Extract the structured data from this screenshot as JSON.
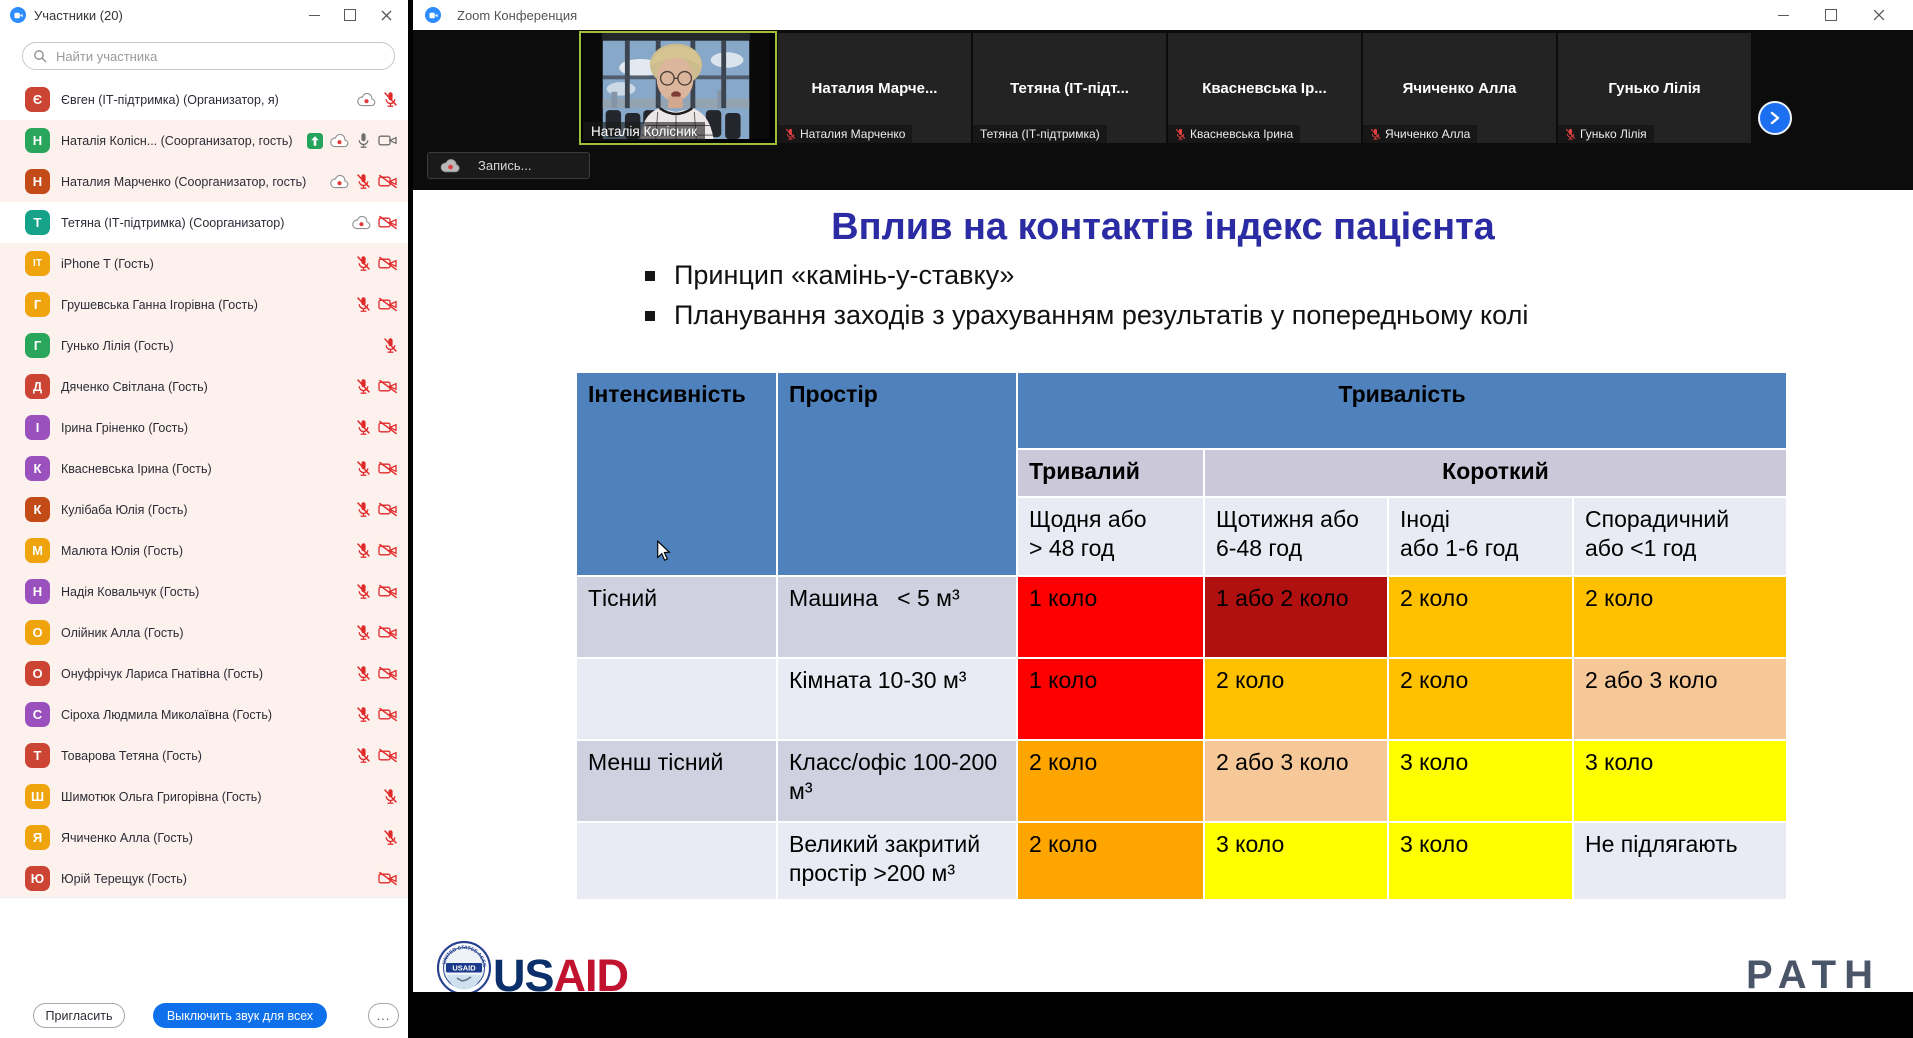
{
  "participants_panel": {
    "title": "Участники (20)",
    "search_placeholder": "Найти участника",
    "invite_label": "Пригласить",
    "mute_all_label": "Выключить звук для всех",
    "more_label": "...",
    "participants": [
      {
        "initial": "Є",
        "name": "Євген (ІТ-підтримка) (Организатор, я)",
        "color": "#cc4433",
        "highlight": false,
        "icons": [
          "cloud",
          "mic-muted"
        ]
      },
      {
        "initial": "Н",
        "name": "Наталія Колісн... (Соорганизатор, гость)",
        "color": "#2aa65c",
        "highlight": true,
        "icons": [
          "share",
          "cloud",
          "mic-on",
          "cam-on"
        ]
      },
      {
        "initial": "Н",
        "name": "Наталия Марченко (Соорганизатор, гость)",
        "color": "#c24b17",
        "highlight": true,
        "icons": [
          "cloud",
          "mic-muted",
          "cam-muted"
        ]
      },
      {
        "initial": "Т",
        "name": "Тетяна (ІТ-підтримка) (Соорганизатор)",
        "color": "#15a288",
        "highlight": false,
        "icons": [
          "cloud",
          "cam-muted"
        ]
      },
      {
        "initial": "IT",
        "name": "iPhone T (Гость)",
        "color": "#efa30d",
        "highlight": true,
        "icons": [
          "mic-muted",
          "cam-muted"
        ]
      },
      {
        "initial": "Г",
        "name": "Грушевська Ганна Ігорівна (Гость)",
        "color": "#efa30d",
        "highlight": true,
        "icons": [
          "mic-muted",
          "cam-muted"
        ]
      },
      {
        "initial": "Г",
        "name": "Гунько Лілія (Гость)",
        "color": "#2aa65c",
        "highlight": true,
        "icons": [
          "mic-muted"
        ]
      },
      {
        "initial": "Д",
        "name": "Дяченко Світлана (Гость)",
        "color": "#cc4433",
        "highlight": true,
        "icons": [
          "mic-muted",
          "cam-muted"
        ]
      },
      {
        "initial": "І",
        "name": "Ірина Гріненко (Гость)",
        "color": "#9b51bd",
        "highlight": true,
        "icons": [
          "mic-muted",
          "cam-muted"
        ]
      },
      {
        "initial": "К",
        "name": "Квасневська Ірина (Гость)",
        "color": "#9b51bd",
        "highlight": true,
        "icons": [
          "mic-muted",
          "cam-muted"
        ]
      },
      {
        "initial": "К",
        "name": "Кулібаба Юлія (Гость)",
        "color": "#c24b17",
        "highlight": true,
        "icons": [
          "mic-muted",
          "cam-muted"
        ]
      },
      {
        "initial": "М",
        "name": "Малюта Юлія (Гость)",
        "color": "#efa30d",
        "highlight": true,
        "icons": [
          "mic-muted",
          "cam-muted"
        ]
      },
      {
        "initial": "Н",
        "name": "Надія Ковальчук (Гость)",
        "color": "#9b51bd",
        "highlight": true,
        "icons": [
          "mic-muted",
          "cam-muted"
        ]
      },
      {
        "initial": "О",
        "name": "Олійник Алла (Гость)",
        "color": "#efa30d",
        "highlight": true,
        "icons": [
          "mic-muted",
          "cam-muted"
        ]
      },
      {
        "initial": "О",
        "name": "Онуфрічук Лариса Гнатівна (Гость)",
        "color": "#cc4433",
        "highlight": true,
        "icons": [
          "mic-muted",
          "cam-muted"
        ]
      },
      {
        "initial": "С",
        "name": "Сіроха Людмила Миколаївна (Гость)",
        "color": "#9b51bd",
        "highlight": true,
        "icons": [
          "mic-muted",
          "cam-muted"
        ]
      },
      {
        "initial": "Т",
        "name": "Товарова Тетяна (Гость)",
        "color": "#cc4433",
        "highlight": true,
        "icons": [
          "mic-muted",
          "cam-muted"
        ]
      },
      {
        "initial": "Ш",
        "name": "Шимотюк Ольга Григорівна (Гость)",
        "color": "#efa30d",
        "highlight": true,
        "icons": [
          "mic-muted"
        ]
      },
      {
        "initial": "Я",
        "name": "Ячиченко Алла (Гость)",
        "color": "#efa30d",
        "highlight": true,
        "icons": [
          "mic-muted"
        ]
      },
      {
        "initial": "Ю",
        "name": "Юрій Терещук (Гость)",
        "color": "#cc4433",
        "highlight": true,
        "icons": [
          "cam-muted"
        ]
      }
    ]
  },
  "main_window": {
    "title": "Zoom Конференция",
    "recording_label": "Запись...",
    "video_strip": {
      "active_name": "Наталія Колісник",
      "tiles": [
        {
          "display": "Наталия Марче...",
          "label": "Наталия Марченко",
          "muted": true
        },
        {
          "display": "Тетяна (ІТ-підт...",
          "label": "Тетяна (ІТ-підтримка)",
          "muted": false
        },
        {
          "display": "Квасневська Ір...",
          "label": "Квасневська Ірина",
          "muted": true
        },
        {
          "display": "Ячиченко Алла",
          "label": "Ячиченко Алла",
          "muted": true
        },
        {
          "display": "Гунько Лілія",
          "label": "Гунько Лілія",
          "muted": true
        }
      ]
    },
    "slide": {
      "title": "Вплив на контактів індекс пацієнта",
      "bullets": [
        "Принцип «камінь-у-ставку»",
        "Планування заходів з урахуванням результатів у попередньому колі"
      ],
      "table": {
        "col_intensity": "Інтенсивність",
        "col_space": "Простір",
        "col_duration": "Тривалість",
        "sub_long": "Тривалий",
        "sub_short": "Короткий",
        "periods": [
          "Щодня або\n> 48 год",
          "Щотижня або\n6-48 год",
          "Іноді\nабо 1-6 год",
          "Спорадичний\nабо <1 год"
        ],
        "rows": [
          {
            "intensity": "Тісний",
            "space": "Машина   < 5 м³",
            "cells": [
              {
                "text": "1 коло",
                "color": "red"
              },
              {
                "text": "1 або 2 коло",
                "color": "darkred"
              },
              {
                "text": "2 коло",
                "color": "amber"
              },
              {
                "text": "2 коло",
                "color": "amber"
              }
            ]
          },
          {
            "intensity": "",
            "space": "Кімната 10-30 м³",
            "cells": [
              {
                "text": "1 коло",
                "color": "red"
              },
              {
                "text": "2 коло",
                "color": "amber"
              },
              {
                "text": "2 коло",
                "color": "amber"
              },
              {
                "text": "2 або 3 коло",
                "color": "peach"
              }
            ]
          },
          {
            "intensity": "Менш тісний",
            "space": "Класс/офіс 100-200 м³",
            "cells": [
              {
                "text": "2 коло",
                "color": "orange"
              },
              {
                "text": "2 або 3 коло",
                "color": "peach"
              },
              {
                "text": "3 коло",
                "color": "yellow"
              },
              {
                "text": "3 коло",
                "color": "yellow"
              }
            ]
          },
          {
            "intensity": "",
            "space": "Великий закритий простір >200 м³",
            "cells": [
              {
                "text": "2 коло",
                "color": "orange"
              },
              {
                "text": "3 коло",
                "color": "yellow"
              },
              {
                "text": "3 коло",
                "color": "yellow"
              },
              {
                "text": "Не підлягають",
                "color": "plain"
              }
            ]
          }
        ],
        "colors": {
          "red": "#FE0000",
          "darkred": "#B01010",
          "amber": "#FFC000",
          "orange": "#FFA500",
          "peach": "#F6C897",
          "yellow": "#FFFF00",
          "plain": "#E9EBF4",
          "header_blue": "#4F81BD",
          "subheader": "#CBC8D9",
          "row_dark": "#CFD1E0",
          "row_light": "#E9EBF4"
        }
      },
      "logos": {
        "usaid_seal": "USAID",
        "usaid_ring": "UNITED STATES AGENCY",
        "usaid_us": "US",
        "usaid_aid": "AID",
        "path": "PATH"
      }
    }
  }
}
